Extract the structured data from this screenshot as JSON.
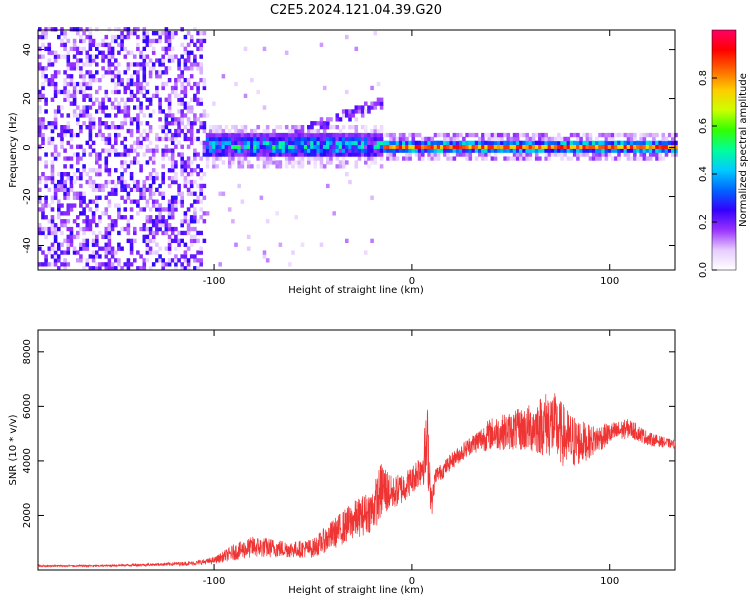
{
  "title": "C2E5.2024.121.04.39.G20",
  "colors": {
    "snr_line": "#ef3434",
    "axis": "#000000",
    "background": "#ffffff"
  },
  "chart_data": [
    {
      "type": "heatmap",
      "name": "spectrogram",
      "xlabel": "Height of straight line (km)",
      "ylabel": "Frequency (Hz)",
      "xlim": [
        -189,
        133
      ],
      "ylim": [
        -50,
        48
      ],
      "xticks": [
        -100,
        0,
        100
      ],
      "xtick_labels": [
        "-100",
        "0",
        "100"
      ],
      "yticks": [
        -40,
        -20,
        0,
        20,
        40
      ],
      "ytick_labels": [
        "-40",
        "-20",
        "0",
        "20",
        "40"
      ],
      "colorbar": {
        "label": "Normalized spectral amplitude",
        "range": [
          0,
          1
        ],
        "ticks": [
          0.0,
          0.2,
          0.4,
          0.6,
          0.8
        ],
        "tick_labels": [
          "0.0",
          "0.2",
          "0.4",
          "0.6",
          "0.8"
        ],
        "colormap": [
          "#ffffff",
          "#e6ccff",
          "#9933ff",
          "#3300ff",
          "#0066ff",
          "#00ccff",
          "#00ff99",
          "#33ff00",
          "#ccff00",
          "#ffcc00",
          "#ff6600",
          "#ff0000",
          "#ff0066"
        ]
      },
      "features": [
        {
          "desc": "broadband noise",
          "x_range": [
            -189,
            -105
          ],
          "freq_range": [
            -50,
            48
          ],
          "amplitude": 0.15
        },
        {
          "desc": "signal band",
          "x_range": [
            -125,
            -15
          ],
          "freq_range": [
            -5,
            5
          ],
          "amplitude": 0.4
        },
        {
          "desc": "narrow carrier",
          "x_range": [
            -15,
            133
          ],
          "freq_range": [
            -1.5,
            1.5
          ],
          "amplitude": 0.85
        },
        {
          "desc": "secondary trace",
          "x_range": [
            -60,
            -15
          ],
          "freq_range": [
            5,
            18
          ],
          "amplitude": 0.2
        }
      ]
    },
    {
      "type": "line",
      "name": "snr",
      "xlabel": "Height of straight line (km)",
      "ylabel": "SNR (10 * v/v)",
      "xlim": [
        -189,
        133
      ],
      "ylim": [
        0,
        8800
      ],
      "xticks": [
        -100,
        0,
        100
      ],
      "xtick_labels": [
        "-100",
        "0",
        "100"
      ],
      "yticks": [
        2000,
        4000,
        6000,
        8000
      ],
      "ytick_labels": [
        "2000",
        "4000",
        "6000",
        "8000"
      ],
      "series": [
        {
          "name": "SNR",
          "x": [
            -189,
            -160,
            -130,
            -110,
            -100,
            -90,
            -80,
            -70,
            -60,
            -50,
            -40,
            -30,
            -20,
            -15,
            -10,
            -5,
            0,
            5,
            8,
            10,
            12,
            15,
            20,
            30,
            40,
            50,
            60,
            70,
            80,
            90,
            100,
            110,
            120,
            133
          ],
          "y": [
            150,
            150,
            200,
            250,
            350,
            650,
            850,
            800,
            750,
            800,
            1300,
            1800,
            2200,
            3000,
            2800,
            3000,
            3300,
            3800,
            4600,
            2400,
            3500,
            3600,
            4000,
            4600,
            5000,
            5100,
            5200,
            5400,
            4700,
            4700,
            5000,
            5200,
            4800,
            4600
          ],
          "spread": [
            30,
            30,
            50,
            80,
            120,
            300,
            400,
            350,
            300,
            350,
            550,
            700,
            800,
            1100,
            600,
            600,
            500,
            700,
            1500,
            500,
            300,
            300,
            300,
            350,
            600,
            700,
            900,
            1300,
            1100,
            600,
            400,
            350,
            250,
            150
          ]
        }
      ]
    }
  ]
}
